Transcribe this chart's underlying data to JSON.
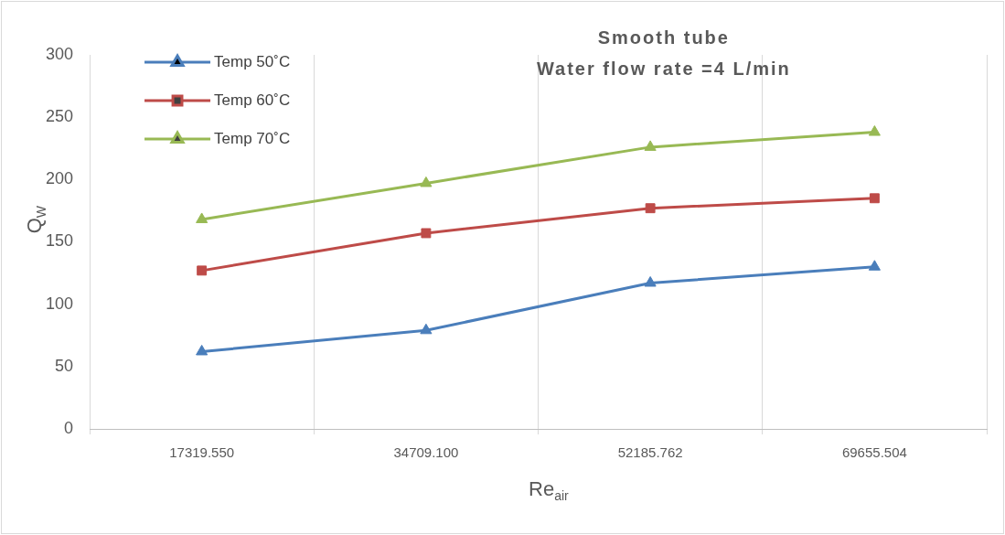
{
  "chart_data": {
    "type": "line",
    "title": "Smooth tube",
    "subtitle": "Water flow rate =4 L/min",
    "xlabel": "Re$_{air}$",
    "ylabel": "Q$_{W}$",
    "categories": [
      "17319.550",
      "34709.100",
      "52185.762",
      "69655.504"
    ],
    "series": [
      {
        "name": "Temp 50˚C",
        "color": "#4a7ebb",
        "marker": "triangle",
        "values": [
          62,
          79,
          117,
          130
        ]
      },
      {
        "name": "Temp 60˚C",
        "color": "#be4b48",
        "marker": "square",
        "values": [
          127,
          157,
          177,
          185
        ]
      },
      {
        "name": "Temp 70˚C",
        "color": "#98b954",
        "marker": "triangle",
        "values": [
          168,
          197,
          226,
          238
        ]
      }
    ],
    "ylim": [
      0,
      300
    ],
    "yticks": [
      0,
      50,
      100,
      150,
      200,
      250,
      300
    ],
    "grid": "x",
    "legend": "top left",
    "line_style": "solid"
  }
}
